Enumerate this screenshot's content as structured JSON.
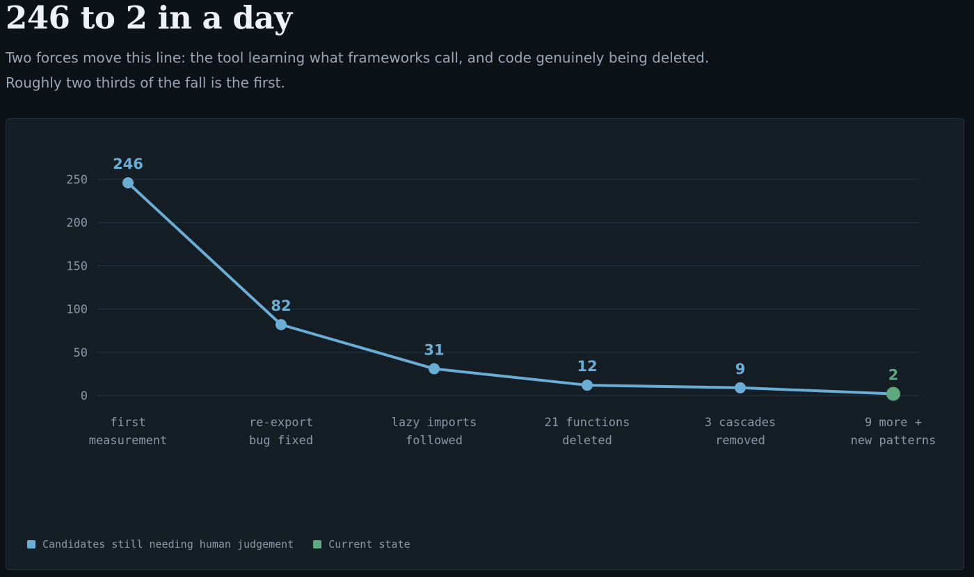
{
  "header": {
    "title": "246 to 2 in a day",
    "subtitle_line1": "Two forces move this line: the tool learning what frameworks call, and code genuinely being deleted.",
    "subtitle_line2": "Roughly two thirds of the fall is the first."
  },
  "colors": {
    "background": "#0d1118",
    "panel": "#151d25",
    "series": "#6aaed6",
    "current": "#5fa97f",
    "grid": "#243240",
    "tick_text": "#8c98a5"
  },
  "chart_data": {
    "type": "line",
    "categories": [
      [
        "first",
        "measurement"
      ],
      [
        "re-export",
        "bug fixed"
      ],
      [
        "lazy imports",
        "followed"
      ],
      [
        "21 functions",
        "deleted"
      ],
      [
        "3 cascades",
        "removed"
      ],
      [
        "9 more +",
        "new patterns"
      ]
    ],
    "series": [
      {
        "name": "Candidates still needing human judgement",
        "values": [
          246,
          82,
          31,
          12,
          9,
          2
        ]
      }
    ],
    "highlight": {
      "index": 5,
      "name": "Current state"
    },
    "yticks": [
      0,
      50,
      100,
      150,
      200,
      250
    ],
    "ylim": [
      0,
      250
    ],
    "grid": true,
    "legend_position": "bottom-left",
    "data_labels": true
  },
  "legend": {
    "items": [
      {
        "label": "Candidates still needing human judgement",
        "color": "#6aaed6"
      },
      {
        "label": "Current state",
        "color": "#5fa97f"
      }
    ]
  }
}
